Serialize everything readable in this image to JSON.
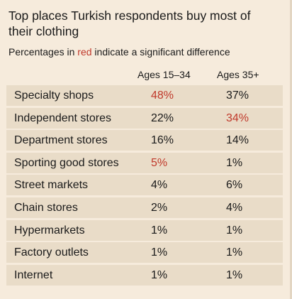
{
  "chart_data": {
    "type": "table",
    "title": "Top places Turkish respondents buy most of their clothing",
    "subtitle_prefix": "Percentages in ",
    "subtitle_red_word": "red",
    "subtitle_suffix": " indicate a significant difference",
    "columns": [
      "Ages 15–34",
      "Ages 35+"
    ],
    "unit": "%",
    "significant_color": "#c0392b",
    "rows": [
      {
        "label": "Specialty shops",
        "values": [
          "48%",
          "37%"
        ],
        "significant": [
          true,
          false
        ]
      },
      {
        "label": "Independent stores",
        "values": [
          "22%",
          "34%"
        ],
        "significant": [
          false,
          true
        ]
      },
      {
        "label": "Department stores",
        "values": [
          "16%",
          "14%"
        ],
        "significant": [
          false,
          false
        ]
      },
      {
        "label": "Sporting good stores",
        "values": [
          "5%",
          "1%"
        ],
        "significant": [
          true,
          false
        ]
      },
      {
        "label": "Street markets",
        "values": [
          "4%",
          "6%"
        ],
        "significant": [
          false,
          false
        ]
      },
      {
        "label": "Chain stores",
        "values": [
          "2%",
          "4%"
        ],
        "significant": [
          false,
          false
        ]
      },
      {
        "label": "Hypermarkets",
        "values": [
          "1%",
          "1%"
        ],
        "significant": [
          false,
          false
        ]
      },
      {
        "label": "Factory outlets",
        "values": [
          "1%",
          "1%"
        ],
        "significant": [
          false,
          false
        ]
      },
      {
        "label": "Internet",
        "values": [
          "1%",
          "1%"
        ],
        "significant": [
          false,
          false
        ]
      }
    ]
  }
}
